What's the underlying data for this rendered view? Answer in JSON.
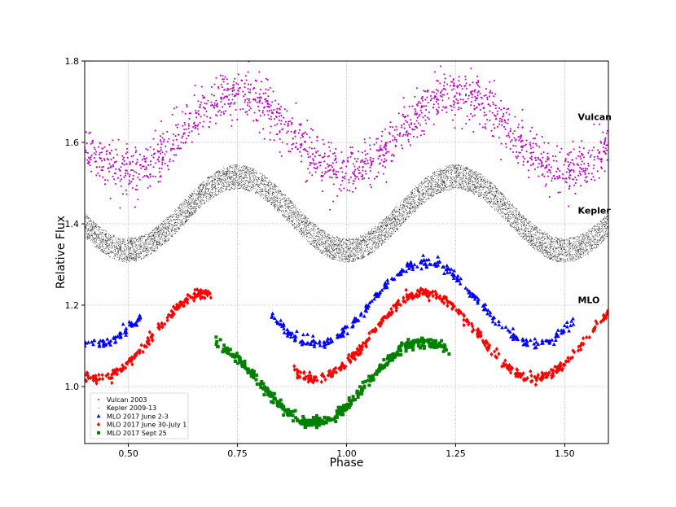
{
  "chart_data": {
    "type": "scatter",
    "title": "",
    "xlabel": "Phase",
    "ylabel": "Relative Flux",
    "xlim": [
      0.4,
      1.6
    ],
    "ylim": [
      0.86,
      1.8
    ],
    "xticks": [
      0.5,
      0.75,
      1.0,
      1.25,
      1.5
    ],
    "xtick_labels": [
      "0.50",
      "0.75",
      "1.00",
      "1.25",
      "1.50"
    ],
    "yticks": [
      1.0,
      1.2,
      1.4,
      1.6,
      1.8
    ],
    "ytick_labels": [
      "1.0",
      "1.2",
      "1.4",
      "1.6",
      "1.8"
    ],
    "grid": true,
    "legend_position": "bottom-left",
    "annotations": [
      {
        "text": "Vulcan",
        "x": 1.53,
        "y": 1.655
      },
      {
        "text": "Kepler",
        "x": 1.53,
        "y": 1.425
      },
      {
        "text": "MLO",
        "x": 1.53,
        "y": 1.205
      }
    ],
    "series": [
      {
        "name": "Vulcan 2003",
        "marker": "dot",
        "color": "#bf00bf",
        "curve": {
          "center": 1.625,
          "amplitude": 0.095,
          "period": 0.5,
          "peak_phase": 0.75
        },
        "phase_range": [
          0.4,
          1.6
        ],
        "scatter_sigma": 0.03,
        "n_points": 1600
      },
      {
        "name": "Kepler 2009-13",
        "marker": "pixel",
        "color": "#000000",
        "curve": {
          "center": 1.425,
          "amplitude": 0.09,
          "period": 0.5,
          "peak_phase": 0.75
        },
        "phase_range": [
          0.4,
          1.6
        ],
        "band_halfwidth": 0.03,
        "n_points": 9000
      },
      {
        "name": "MLO 2017 June 2-3",
        "marker": "triangle",
        "color": "#0000ff",
        "curve": {
          "center": 1.205,
          "amplitude": 0.1,
          "period": 0.5,
          "peak_phase": 1.18
        },
        "phase_ranges": [
          [
            0.4,
            0.53
          ],
          [
            0.82,
            1.52
          ]
        ],
        "scatter_sigma": 0.006,
        "n_points": 380
      },
      {
        "name": "MLO 2017 June 30-July 1",
        "marker": "diamond",
        "color": "#ff0000",
        "curve": {
          "center": 1.125,
          "amplitude": 0.105,
          "period": 0.5,
          "peak_phase": 1.18
        },
        "phase_ranges": [
          [
            0.4,
            0.69
          ],
          [
            0.88,
            1.6
          ]
        ],
        "scatter_sigma": 0.006,
        "n_points": 600
      },
      {
        "name": "MLO 2017 Sept 25",
        "marker": "square",
        "color": "#008000",
        "curve": {
          "center": 1.01,
          "amplitude": 0.1,
          "period": 0.5,
          "peak_phase": 1.175
        },
        "phase_ranges": [
          [
            0.7,
            1.235
          ]
        ],
        "scatter_sigma": 0.006,
        "n_points": 420
      }
    ]
  }
}
